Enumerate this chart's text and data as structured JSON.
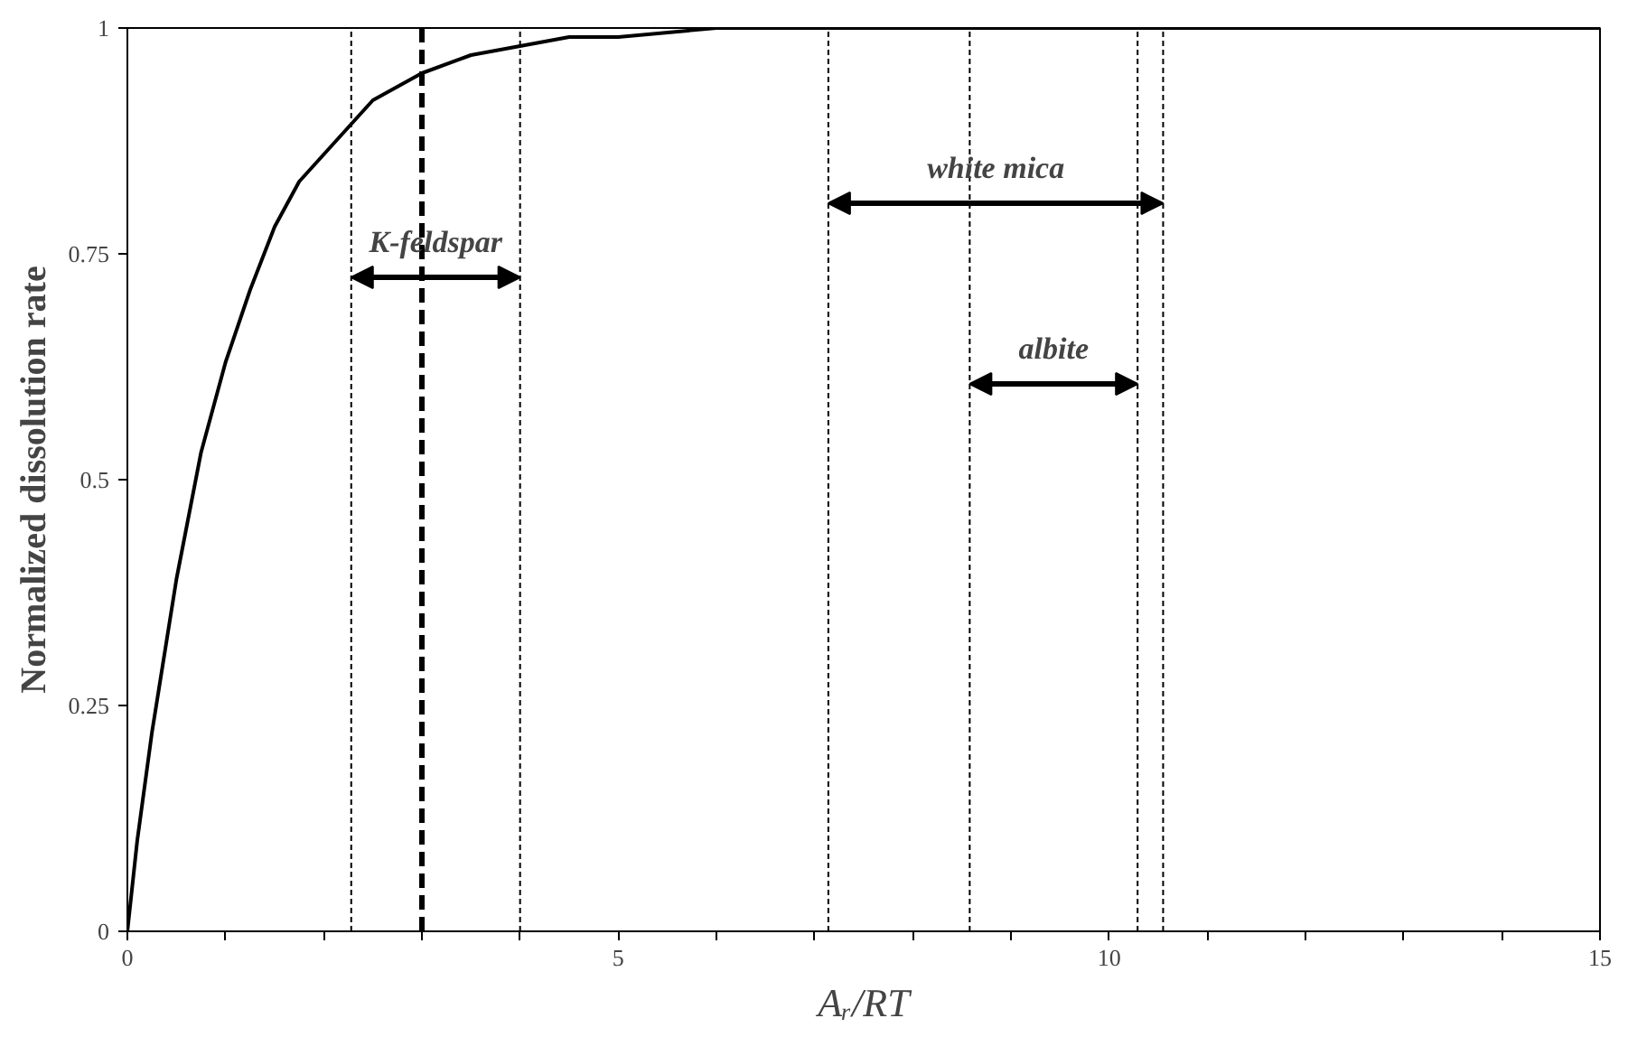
{
  "chart_data": {
    "type": "line",
    "xlabel": "Aᵣ/RT",
    "ylabel": "Normalized dissolution rate",
    "x": [
      0,
      0.1,
      0.25,
      0.5,
      0.75,
      1,
      1.25,
      1.5,
      1.75,
      2,
      2.5,
      3,
      3.5,
      4,
      4.5,
      5,
      6,
      8,
      10,
      12,
      15
    ],
    "series": [
      {
        "color": "#000000",
        "values": [
          0,
          0.1,
          0.22,
          0.39,
          0.53,
          0.63,
          0.71,
          0.78,
          0.83,
          0.86,
          0.92,
          0.95,
          0.97,
          0.98,
          0.99,
          0.99,
          1,
          1,
          1,
          1,
          1
        ]
      }
    ],
    "xlim": [
      0,
      15
    ],
    "ylim": [
      0,
      1
    ],
    "xticks": [
      0,
      {
        "value": 1,
        "label": null
      },
      {
        "value": 2,
        "label": null
      },
      {
        "value": 3,
        "label": null
      },
      {
        "value": 4,
        "label": null
      },
      5,
      {
        "value": 6,
        "label": null
      },
      {
        "value": 7,
        "label": null
      },
      {
        "value": 8,
        "label": null
      },
      {
        "value": 9,
        "label": null
      },
      10,
      {
        "value": 11,
        "label": null
      },
      {
        "value": 12,
        "label": null
      },
      {
        "value": 13,
        "label": null
      },
      {
        "value": 14,
        "label": null
      },
      15
    ],
    "yticks": [
      0,
      0.25,
      0.5,
      0.75,
      1
    ],
    "grid": false,
    "marker": "none",
    "line_style": "solid",
    "ref_lines": [
      {
        "axis": "x",
        "value": 2.28,
        "label": null,
        "line_style": "dotted"
      },
      {
        "axis": "x",
        "value": 3.0,
        "label": null,
        "line_style": "dashed"
      },
      {
        "axis": "x",
        "value": 4.0,
        "label": null,
        "line_style": "dotted"
      },
      {
        "axis": "x",
        "value": 7.14,
        "label": null,
        "line_style": "dotted"
      },
      {
        "axis": "x",
        "value": 8.58,
        "label": null,
        "line_style": "dotted"
      },
      {
        "axis": "x",
        "value": 10.29,
        "label": null,
        "line_style": "dotted"
      },
      {
        "axis": "x",
        "value": 10.55,
        "label": null,
        "line_style": "dotted"
      }
    ],
    "annotations": [
      "K-feldspar",
      "white mica",
      "albite"
    ]
  }
}
